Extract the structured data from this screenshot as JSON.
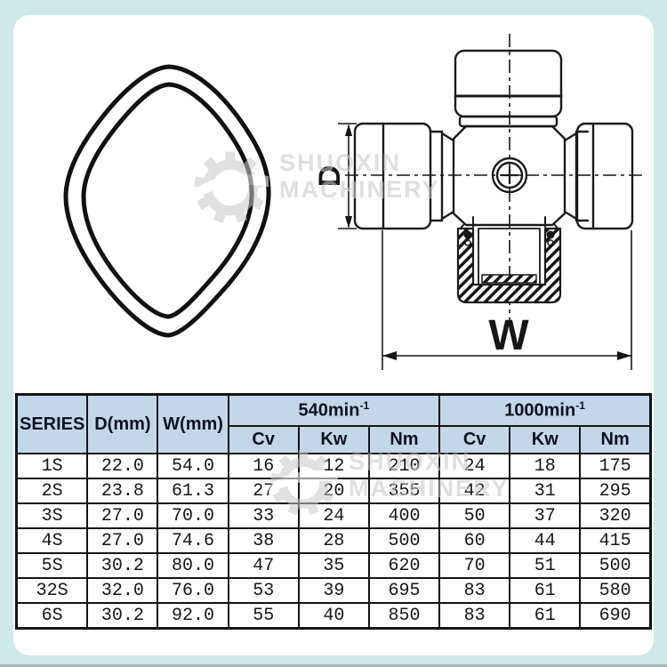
{
  "watermark": {
    "line1": "SHUOXIN",
    "line2": "MACHINERY"
  },
  "diagram": {
    "dimension_d_label": "D",
    "dimension_w_label": "W"
  },
  "table": {
    "header": {
      "series": "SERIES",
      "d": "D(mm)",
      "w": "W(mm)",
      "groups": [
        {
          "label": "540min",
          "sup": "-1"
        },
        {
          "label": "1000min",
          "sup": "-1"
        }
      ],
      "sub": [
        "Cv",
        "Kw",
        "Nm",
        "Cv",
        "Kw",
        "Nm"
      ]
    },
    "rows": [
      [
        "1S",
        "22.0",
        "54.0",
        "16",
        "12",
        "210",
        "24",
        "18",
        "175"
      ],
      [
        "2S",
        "23.8",
        "61.3",
        "27",
        "20",
        "355",
        "42",
        "31",
        "295"
      ],
      [
        "3S",
        "27.0",
        "70.0",
        "33",
        "24",
        "400",
        "50",
        "37",
        "320"
      ],
      [
        "4S",
        "27.0",
        "74.6",
        "38",
        "28",
        "500",
        "60",
        "44",
        "415"
      ],
      [
        "5S",
        "30.2",
        "80.0",
        "47",
        "35",
        "620",
        "70",
        "51",
        "500"
      ],
      [
        "32S",
        "32.0",
        "76.0",
        "53",
        "39",
        "695",
        "83",
        "61",
        "580"
      ],
      [
        "6S",
        "30.2",
        "92.0",
        "55",
        "40",
        "850",
        "83",
        "61",
        "690"
      ]
    ]
  }
}
